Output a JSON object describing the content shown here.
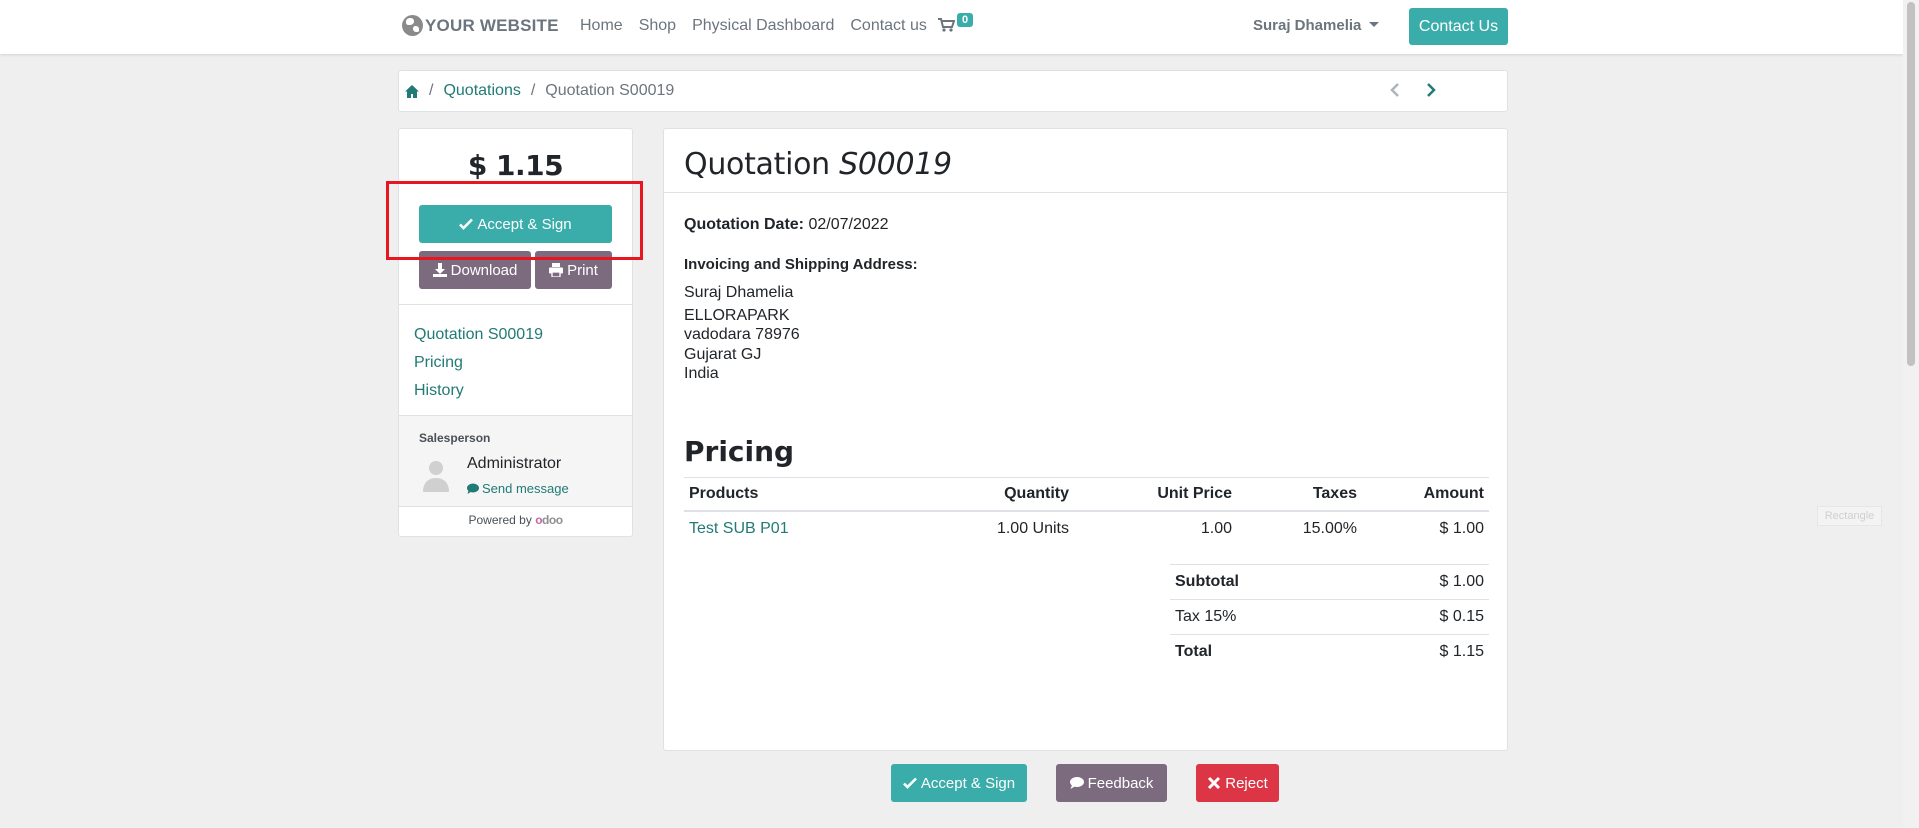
{
  "navbar": {
    "logo_text": "YOUR WEBSITE",
    "links": [
      "Home",
      "Shop",
      "Physical Dashboard",
      "Contact us"
    ],
    "cart_count": "0",
    "user_name": "Suraj Dhamelia",
    "contact_button": "Contact Us"
  },
  "breadcrumb": {
    "quotations": "Quotations",
    "current": "Quotation S00019"
  },
  "sidebar": {
    "amount": "$ 1.15",
    "accept_sign": "Accept & Sign",
    "download": "Download",
    "print": "Print",
    "nav": [
      "Quotation S00019",
      "Pricing",
      "History"
    ],
    "salesperson_title": "Salesperson",
    "salesperson_name": "Administrator",
    "send_message": "Send message",
    "powered_by": "Powered by",
    "odoo_o": "o",
    "odoo_rest": "doo"
  },
  "main": {
    "title_prefix": "Quotation",
    "title_number": "S00019",
    "date_label": "Quotation Date:",
    "date_value": "02/07/2022",
    "address_title": "Invoicing and Shipping Address:",
    "address_lines": [
      "Suraj Dhamelia",
      "ELLORAPARK",
      "vadodara 78976",
      "Gujarat GJ",
      "India"
    ],
    "pricing_title": "Pricing",
    "table_headers": [
      "Products",
      "Quantity",
      "Unit Price",
      "Taxes",
      "Amount"
    ],
    "rows": [
      {
        "product": "Test SUB P01",
        "quantity": "1.00 Units",
        "unit_price": "1.00",
        "taxes": "15.00%",
        "amount": "$ 1.00"
      }
    ],
    "totals": [
      {
        "label": "Subtotal",
        "value": "$ 1.00"
      },
      {
        "label": "Tax 15%",
        "value": "$ 0.15"
      },
      {
        "label": "Total",
        "value": "$ 1.15"
      }
    ]
  },
  "bottom": {
    "accept_sign": "Accept & Sign",
    "feedback": "Feedback",
    "reject": "Reject"
  },
  "overlay_label": "Rectangle",
  "colors": {
    "primary": "#3aadaa",
    "secondary": "#7c6a7e",
    "danger": "#dc3545",
    "link": "#217a76",
    "highlight": "#e8171f"
  }
}
